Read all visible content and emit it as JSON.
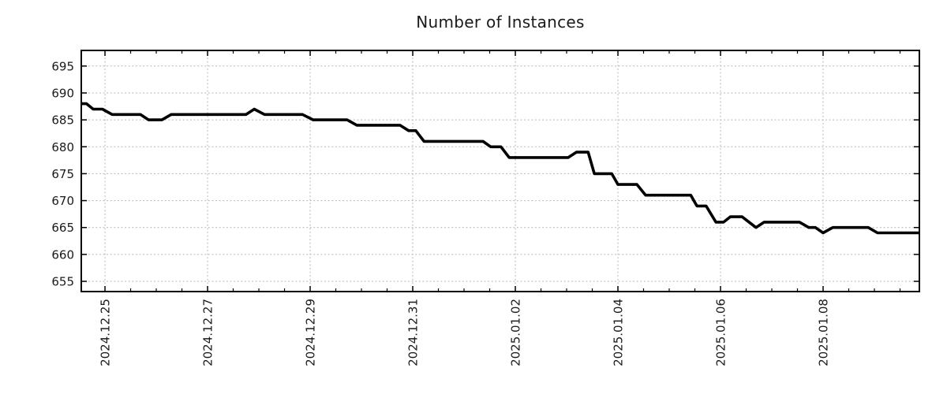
{
  "chart_data": {
    "type": "line",
    "title": "Number of Instances",
    "xlabel": "",
    "ylabel": "",
    "series_name": "Number of Instances",
    "x_unit": "days since 2024.12.25 00:00",
    "xlim": [
      -0.462,
      15.877
    ],
    "ylim": [
      653.1,
      697.9
    ],
    "y_ticks": [
      655,
      660,
      665,
      670,
      675,
      680,
      685,
      690,
      695
    ],
    "x_ticks": [
      {
        "t": 0,
        "label": "2024.12.25"
      },
      {
        "t": 2,
        "label": "2024.12.27"
      },
      {
        "t": 4,
        "label": "2024.12.29"
      },
      {
        "t": 6,
        "label": "2024.12.31"
      },
      {
        "t": 8,
        "label": "2025.01.02"
      },
      {
        "t": 10,
        "label": "2025.01.04"
      },
      {
        "t": 12,
        "label": "2025.01.06"
      },
      {
        "t": 14,
        "label": "2025.01.08"
      }
    ],
    "x_minor_step": 0.5,
    "grid": true,
    "grid_style": "dotted",
    "legend": "none",
    "colors": {
      "line": "#000000",
      "grid": "#b0b0b0",
      "border": "#000000",
      "tick": "#000000",
      "text": "#1a1a1a",
      "background": "#ffffff"
    },
    "points": [
      [
        -0.46,
        688
      ],
      [
        -0.36,
        688
      ],
      [
        -0.23,
        687
      ],
      [
        -0.05,
        687
      ],
      [
        0.14,
        686
      ],
      [
        0.69,
        686
      ],
      [
        0.85,
        685
      ],
      [
        1.11,
        685
      ],
      [
        1.29,
        686
      ],
      [
        2.75,
        686
      ],
      [
        2.91,
        687
      ],
      [
        3.11,
        686
      ],
      [
        3.85,
        686
      ],
      [
        4.06,
        685
      ],
      [
        4.72,
        685
      ],
      [
        4.91,
        684
      ],
      [
        5.75,
        684
      ],
      [
        5.92,
        683
      ],
      [
        6.06,
        683
      ],
      [
        6.22,
        681
      ],
      [
        7.37,
        681
      ],
      [
        7.52,
        680
      ],
      [
        7.72,
        680
      ],
      [
        7.88,
        678
      ],
      [
        9.03,
        678
      ],
      [
        9.19,
        679
      ],
      [
        9.42,
        679
      ],
      [
        9.54,
        675
      ],
      [
        9.88,
        675
      ],
      [
        10.0,
        673
      ],
      [
        10.37,
        673
      ],
      [
        10.54,
        671
      ],
      [
        11.42,
        671
      ],
      [
        11.54,
        669
      ],
      [
        11.72,
        669
      ],
      [
        11.91,
        666
      ],
      [
        12.06,
        666
      ],
      [
        12.19,
        667
      ],
      [
        12.42,
        667
      ],
      [
        12.69,
        665
      ],
      [
        12.85,
        666
      ],
      [
        13.54,
        666
      ],
      [
        13.72,
        665
      ],
      [
        13.85,
        665
      ],
      [
        14.0,
        664
      ],
      [
        14.19,
        665
      ],
      [
        14.88,
        665
      ],
      [
        15.06,
        664
      ],
      [
        15.88,
        664
      ]
    ]
  }
}
